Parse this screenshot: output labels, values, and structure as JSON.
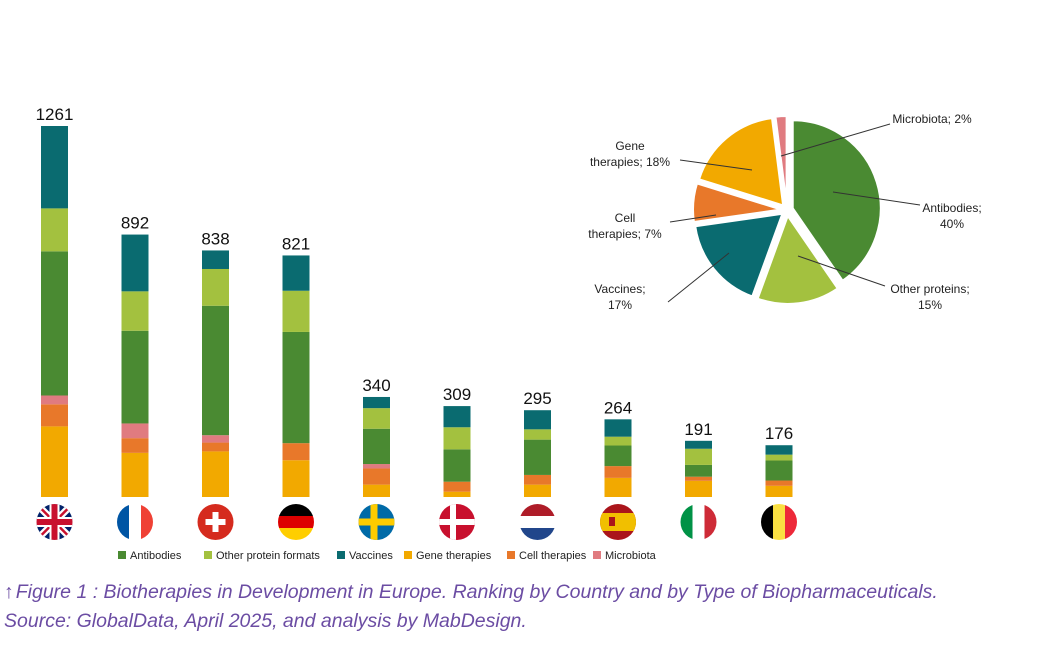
{
  "chart_data": [
    {
      "type": "bar",
      "stacked": true,
      "categories": [
        "United Kingdom",
        "France",
        "Switzerland",
        "Germany",
        "Sweden",
        "Denmark",
        "Netherlands",
        "Spain",
        "Italy",
        "Belgium"
      ],
      "totals": [
        1261,
        892,
        838,
        821,
        340,
        309,
        295,
        264,
        191,
        176
      ],
      "stack_order_bottom_to_top": [
        "Gene therapies",
        "Cell therapies",
        "Microbiota",
        "Antibodies",
        "Other protein formats",
        "Vaccines"
      ],
      "series": [
        {
          "name": "Gene therapies",
          "color": "#f2a900",
          "values": [
            240,
            150,
            155,
            125,
            42,
            18,
            42,
            65,
            55,
            38
          ]
        },
        {
          "name": "Cell therapies",
          "color": "#e8782a",
          "values": [
            75,
            50,
            30,
            58,
            55,
            34,
            33,
            40,
            14,
            18
          ]
        },
        {
          "name": "Microbiota",
          "color": "#e07b80",
          "values": [
            30,
            50,
            25,
            0,
            15,
            0,
            0,
            0,
            0,
            0
          ]
        },
        {
          "name": "Antibodies",
          "color": "#4a8a32",
          "values": [
            490,
            315,
            440,
            378,
            120,
            110,
            120,
            70,
            40,
            68
          ]
        },
        {
          "name": "Other protein formats",
          "color": "#a3c13f",
          "values": [
            146,
            134,
            125,
            140,
            70,
            75,
            35,
            30,
            55,
            20
          ]
        },
        {
          "name": "Vaccines",
          "color": "#0a6b70",
          "values": [
            280,
            193,
            63,
            120,
            38,
            72,
            65,
            59,
            27,
            32
          ]
        }
      ],
      "countries": [
        {
          "name": "United Kingdom",
          "flag": "uk-flag-icon"
        },
        {
          "name": "France",
          "flag": "france-flag-icon"
        },
        {
          "name": "Switzerland",
          "flag": "switzerland-flag-icon"
        },
        {
          "name": "Germany",
          "flag": "germany-flag-icon"
        },
        {
          "name": "Sweden",
          "flag": "sweden-flag-icon"
        },
        {
          "name": "Denmark",
          "flag": "denmark-flag-icon"
        },
        {
          "name": "Netherlands",
          "flag": "netherlands-flag-icon"
        },
        {
          "name": "Spain",
          "flag": "spain-flag-icon"
        },
        {
          "name": "Italy",
          "flag": "italy-flag-icon"
        },
        {
          "name": "Belgium",
          "flag": "belgium-flag-icon"
        }
      ],
      "legend": [
        {
          "label": "Antibodies",
          "color": "#4a8a32"
        },
        {
          "label": "Other protein formats",
          "color": "#a3c13f"
        },
        {
          "label": "Vaccines",
          "color": "#0a6b70"
        },
        {
          "label": "Gene therapies",
          "color": "#f2a900"
        },
        {
          "label": "Cell therapies",
          "color": "#e8782a"
        },
        {
          "label": "Microbiota",
          "color": "#e07b80"
        }
      ],
      "legend_position": "bottom",
      "axes_visible": false,
      "grid": false
    },
    {
      "type": "pie",
      "slices": [
        {
          "name": "Antibodies",
          "value": 40,
          "color": "#4a8a32",
          "label_lines": [
            "Antibodies;",
            "40%"
          ]
        },
        {
          "name": "Other proteins",
          "value": 15,
          "color": "#a3c13f",
          "label_lines": [
            "Other proteins;",
            "15%"
          ]
        },
        {
          "name": "Vaccines",
          "value": 17,
          "color": "#0a6b70",
          "label_lines": [
            "Vaccines;",
            "17%"
          ]
        },
        {
          "name": "Cell therapies",
          "value": 7,
          "color": "#e8782a",
          "label_lines": [
            "Cell",
            "therapies; 7%"
          ]
        },
        {
          "name": "Gene therapies",
          "value": 18,
          "color": "#f2a900",
          "label_lines": [
            "Gene",
            "therapies; 18%"
          ]
        },
        {
          "name": "Microbiota",
          "value": 2,
          "color": "#e07b80",
          "label_lines": [
            "Microbiota; 2%"
          ]
        }
      ],
      "exploded": true
    }
  ],
  "caption": {
    "arrow": "↑",
    "line1": "Figure 1 : Biotherapies in Development in Europe. Ranking by Country and by Type of Biopharmaceuticals.",
    "line2": "Source: GlobalData, April 2025, and analysis by MabDesign."
  }
}
